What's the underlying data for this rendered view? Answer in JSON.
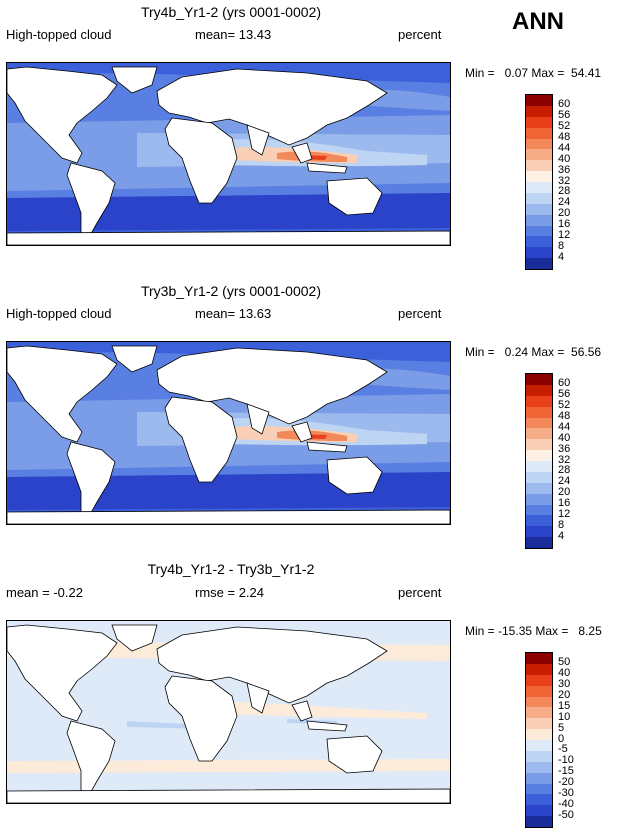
{
  "season": "ANN",
  "panels": [
    {
      "title": "Try4b_Yr1-2 (yrs 0001-0002)",
      "left_label": "High-topped cloud",
      "center_label": "mean=  13.43",
      "right_label": "percent",
      "minmax": "Min =   0.07 Max =  54.41",
      "scheme": "abs",
      "ticks": [
        "60",
        "56",
        "52",
        "48",
        "44",
        "40",
        "36",
        "32",
        "28",
        "24",
        "20",
        "16",
        "12",
        "8",
        "4"
      ],
      "colors": [
        "#8b0000",
        "#c81e00",
        "#e8401a",
        "#f06535",
        "#f3885a",
        "#f6ac86",
        "#f9d0b6",
        "#fdf0e4",
        "#dfeaf8",
        "#bed4f3",
        "#9cbaee",
        "#7b9de7",
        "#5a7fe2",
        "#3b60da",
        "#2a43c8",
        "#1a2c9a"
      ]
    },
    {
      "title": "Try3b_Yr1-2 (yrs 0001-0002)",
      "left_label": "High-topped cloud",
      "center_label": "mean=  13.63",
      "right_label": "percent",
      "minmax": "Min =   0.24 Max =  56.56",
      "scheme": "abs",
      "ticks": [
        "60",
        "56",
        "52",
        "48",
        "44",
        "40",
        "36",
        "32",
        "28",
        "24",
        "20",
        "16",
        "12",
        "8",
        "4"
      ],
      "colors": [
        "#8b0000",
        "#c81e00",
        "#e8401a",
        "#f06535",
        "#f3885a",
        "#f6ac86",
        "#f9d0b6",
        "#fdf0e4",
        "#dfeaf8",
        "#bed4f3",
        "#9cbaee",
        "#7b9de7",
        "#5a7fe2",
        "#3b60da",
        "#2a43c8",
        "#1a2c9a"
      ]
    },
    {
      "title": "Try4b_Yr1-2 - Try3b_Yr1-2",
      "left_label": "mean =  -0.22",
      "center_label": "rmse =   2.24",
      "right_label": "percent",
      "minmax": "Min = -15.35 Max =   8.25",
      "scheme": "diff",
      "ticks": [
        "50",
        "40",
        "30",
        "20",
        "15",
        "10",
        "5",
        "0",
        "-5",
        "-10",
        "-15",
        "-20",
        "-30",
        "-40",
        "-50"
      ],
      "colors": [
        "#8b0000",
        "#c81e00",
        "#e8401a",
        "#f06535",
        "#f3885a",
        "#f6ac86",
        "#f9d0b6",
        "#fdebd9",
        "#dfeaf8",
        "#bed4f3",
        "#9cbaee",
        "#7b9de7",
        "#5a7fe2",
        "#3b60da",
        "#2a43c8",
        "#1a2c9a"
      ]
    }
  ]
}
